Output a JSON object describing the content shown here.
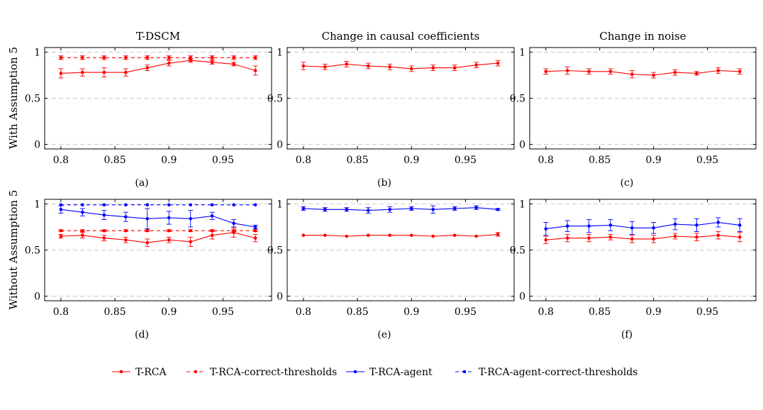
{
  "figure": {
    "row_labels": [
      "With Assumption 5",
      "Without Assumption 5"
    ],
    "subplot_captions": [
      "(a)",
      "(b)",
      "(c)",
      "(d)",
      "(e)",
      "(f)"
    ],
    "legend": [
      {
        "label": "T-RCA",
        "color": "#ff0000",
        "dashed": false
      },
      {
        "label": "T-RCA-correct-thresholds",
        "color": "#ff0000",
        "dashed": true
      },
      {
        "label": "T-RCA-agent",
        "color": "#0000ff",
        "dashed": false
      },
      {
        "label": "T-RCA-agent-correct-thresholds",
        "color": "#0000ff",
        "dashed": true
      }
    ]
  },
  "chart_data": [
    {
      "type": "line",
      "title": "T-DSCM",
      "x": [
        0.8,
        0.82,
        0.84,
        0.86,
        0.88,
        0.9,
        0.92,
        0.94,
        0.96,
        0.98
      ],
      "xticks": [
        "0.8",
        "0.85",
        "0.9",
        "0.95"
      ],
      "yticks": [
        "0",
        "0.5",
        "1"
      ],
      "xlim": [
        0.785,
        0.995
      ],
      "ylim": [
        -0.05,
        1.05
      ],
      "grid": "horizontal dashed",
      "series": [
        {
          "name": "T-RCA",
          "color": "#ff0000",
          "dashed": false,
          "values": [
            0.77,
            0.78,
            0.78,
            0.78,
            0.83,
            0.88,
            0.91,
            0.89,
            0.87,
            0.8
          ],
          "errors": [
            0.05,
            0.04,
            0.05,
            0.04,
            0.03,
            0.03,
            0.02,
            0.02,
            0.02,
            0.05
          ]
        },
        {
          "name": "T-RCA-correct-thresholds",
          "color": "#ff0000",
          "dashed": true,
          "values": [
            0.94,
            0.94,
            0.94,
            0.94,
            0.94,
            0.94,
            0.94,
            0.94,
            0.94,
            0.94
          ],
          "errors": [
            0.02,
            0.02,
            0.02,
            0.02,
            0.02,
            0.02,
            0.02,
            0.02,
            0.02,
            0.02
          ]
        }
      ]
    },
    {
      "type": "line",
      "title": "Change in causal coefficients",
      "x": [
        0.8,
        0.82,
        0.84,
        0.86,
        0.88,
        0.9,
        0.92,
        0.94,
        0.96,
        0.98
      ],
      "xticks": [
        "0.8",
        "0.85",
        "0.9",
        "0.95"
      ],
      "yticks": [
        "0",
        "0.5",
        "1"
      ],
      "xlim": [
        0.785,
        0.995
      ],
      "ylim": [
        -0.05,
        1.05
      ],
      "grid": "horizontal dashed",
      "series": [
        {
          "name": "T-RCA",
          "color": "#ff0000",
          "dashed": false,
          "values": [
            0.85,
            0.84,
            0.87,
            0.85,
            0.84,
            0.82,
            0.83,
            0.83,
            0.86,
            0.88
          ],
          "errors": [
            0.04,
            0.03,
            0.03,
            0.03,
            0.03,
            0.03,
            0.03,
            0.03,
            0.03,
            0.03
          ]
        }
      ]
    },
    {
      "type": "line",
      "title": "Change in noise",
      "x": [
        0.8,
        0.82,
        0.84,
        0.86,
        0.88,
        0.9,
        0.92,
        0.94,
        0.96,
        0.98
      ],
      "xticks": [
        "0.8",
        "0.85",
        "0.9",
        "0.95"
      ],
      "yticks": [
        "0",
        "0.5",
        "1"
      ],
      "xlim": [
        0.785,
        0.995
      ],
      "ylim": [
        -0.05,
        1.05
      ],
      "grid": "horizontal dashed",
      "series": [
        {
          "name": "T-RCA",
          "color": "#ff0000",
          "dashed": false,
          "values": [
            0.79,
            0.8,
            0.79,
            0.79,
            0.76,
            0.75,
            0.78,
            0.77,
            0.8,
            0.79
          ],
          "errors": [
            0.03,
            0.04,
            0.03,
            0.03,
            0.04,
            0.03,
            0.03,
            0.02,
            0.03,
            0.03
          ]
        }
      ]
    },
    {
      "type": "line",
      "title": "",
      "x": [
        0.8,
        0.82,
        0.84,
        0.86,
        0.88,
        0.9,
        0.92,
        0.94,
        0.96,
        0.98
      ],
      "xticks": [
        "0.8",
        "0.85",
        "0.9",
        "0.95"
      ],
      "yticks": [
        "0",
        "0.5",
        "1"
      ],
      "xlim": [
        0.785,
        0.995
      ],
      "ylim": [
        -0.05,
        1.05
      ],
      "grid": "horizontal dashed",
      "series": [
        {
          "name": "T-RCA",
          "color": "#ff0000",
          "dashed": false,
          "values": [
            0.65,
            0.66,
            0.63,
            0.61,
            0.58,
            0.61,
            0.59,
            0.66,
            0.69,
            0.63
          ],
          "errors": [
            0.02,
            0.03,
            0.03,
            0.03,
            0.04,
            0.03,
            0.05,
            0.04,
            0.05,
            0.04
          ]
        },
        {
          "name": "T-RCA-correct-thresholds",
          "color": "#ff0000",
          "dashed": true,
          "values": [
            0.71,
            0.71,
            0.71,
            0.71,
            0.71,
            0.71,
            0.71,
            0.71,
            0.71,
            0.71
          ],
          "errors": [
            0.01,
            0.01,
            0.01,
            0.01,
            0.01,
            0.01,
            0.01,
            0.01,
            0.01,
            0.01
          ]
        },
        {
          "name": "T-RCA-agent",
          "color": "#0000ff",
          "dashed": false,
          "values": [
            0.94,
            0.91,
            0.88,
            0.86,
            0.84,
            0.85,
            0.84,
            0.87,
            0.79,
            0.75
          ],
          "errors": [
            0.04,
            0.04,
            0.05,
            0.05,
            0.11,
            0.07,
            0.09,
            0.04,
            0.04,
            0.02
          ]
        },
        {
          "name": "T-RCA-agent-correct-thresholds",
          "color": "#0000ff",
          "dashed": true,
          "values": [
            0.99,
            0.99,
            0.99,
            0.99,
            0.99,
            0.99,
            0.99,
            0.99,
            0.99,
            0.99
          ],
          "errors": [
            0.005,
            0.005,
            0.005,
            0.005,
            0.005,
            0.005,
            0.005,
            0.005,
            0.005,
            0.005
          ]
        }
      ]
    },
    {
      "type": "line",
      "title": "",
      "x": [
        0.8,
        0.82,
        0.84,
        0.86,
        0.88,
        0.9,
        0.92,
        0.94,
        0.96,
        0.98
      ],
      "xticks": [
        "0.8",
        "0.85",
        "0.9",
        "0.95"
      ],
      "yticks": [
        "0",
        "0.5",
        "1"
      ],
      "xlim": [
        0.785,
        0.995
      ],
      "ylim": [
        -0.05,
        1.05
      ],
      "grid": "horizontal dashed",
      "series": [
        {
          "name": "T-RCA",
          "color": "#ff0000",
          "dashed": false,
          "values": [
            0.66,
            0.66,
            0.65,
            0.66,
            0.66,
            0.66,
            0.65,
            0.66,
            0.65,
            0.67
          ],
          "errors": [
            0.005,
            0.005,
            0.005,
            0.005,
            0.005,
            0.005,
            0.005,
            0.005,
            0.005,
            0.02
          ]
        },
        {
          "name": "T-RCA-agent",
          "color": "#0000ff",
          "dashed": false,
          "values": [
            0.95,
            0.94,
            0.94,
            0.93,
            0.94,
            0.95,
            0.94,
            0.95,
            0.96,
            0.94
          ],
          "errors": [
            0.02,
            0.02,
            0.02,
            0.03,
            0.03,
            0.02,
            0.04,
            0.02,
            0.02,
            0.01
          ]
        }
      ]
    },
    {
      "type": "line",
      "title": "",
      "x": [
        0.8,
        0.82,
        0.84,
        0.86,
        0.88,
        0.9,
        0.92,
        0.94,
        0.96,
        0.98
      ],
      "xticks": [
        "0.8",
        "0.85",
        "0.9",
        "0.95"
      ],
      "yticks": [
        "0",
        "0.5",
        "1"
      ],
      "xlim": [
        0.785,
        0.995
      ],
      "ylim": [
        -0.05,
        1.05
      ],
      "grid": "horizontal dashed",
      "series": [
        {
          "name": "T-RCA",
          "color": "#ff0000",
          "dashed": false,
          "values": [
            0.61,
            0.63,
            0.63,
            0.64,
            0.62,
            0.62,
            0.65,
            0.64,
            0.66,
            0.64
          ],
          "errors": [
            0.04,
            0.04,
            0.04,
            0.03,
            0.04,
            0.04,
            0.03,
            0.04,
            0.04,
            0.05
          ]
        },
        {
          "name": "T-RCA-agent",
          "color": "#0000ff",
          "dashed": false,
          "values": [
            0.73,
            0.76,
            0.76,
            0.77,
            0.74,
            0.74,
            0.78,
            0.77,
            0.8,
            0.77
          ],
          "errors": [
            0.07,
            0.06,
            0.07,
            0.06,
            0.07,
            0.06,
            0.06,
            0.07,
            0.05,
            0.07
          ]
        }
      ]
    }
  ]
}
